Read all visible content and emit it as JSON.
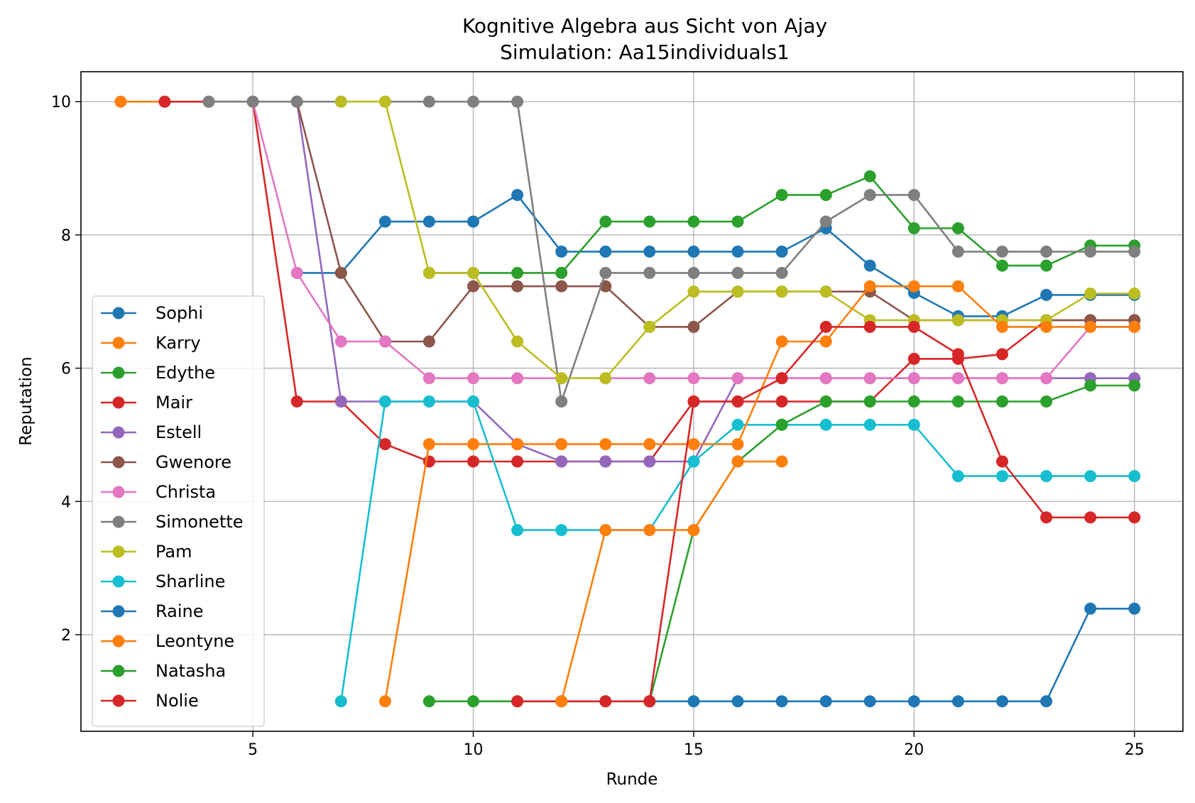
{
  "chart_data": {
    "type": "line",
    "title": "Kognitive Algebra aus Sicht von Ajay",
    "subtitle": "Simulation: Aa15individuals1",
    "xlabel": "Runde",
    "ylabel": "Reputation",
    "xlim": [
      1.1,
      26.1
    ],
    "ylim": [
      0.55,
      10.45
    ],
    "xticks": [
      5,
      10,
      15,
      20,
      25
    ],
    "yticks": [
      2,
      4,
      6,
      8,
      10
    ],
    "grid": true,
    "legend_position": "lower-left",
    "series": [
      {
        "name": "Sophi",
        "color": "#1f77b4",
        "x": [
          6,
          7,
          8,
          9,
          10,
          11,
          12,
          13,
          14,
          15,
          16,
          17,
          18,
          19,
          20,
          21,
          22,
          23,
          24,
          25
        ],
        "y": [
          7.43,
          7.43,
          8.2,
          8.2,
          8.2,
          8.6,
          7.75,
          7.75,
          7.75,
          7.75,
          7.75,
          7.75,
          8.1,
          7.54,
          7.13,
          6.78,
          6.78,
          7.1,
          7.1,
          7.1
        ]
      },
      {
        "name": "Karry",
        "color": "#ff7f0e",
        "x": [
          2,
          3
        ],
        "y": [
          10,
          10
        ]
      },
      {
        "name": "Edythe",
        "color": "#2ca02c",
        "x": [
          9,
          10,
          11,
          12,
          13,
          14,
          15,
          16,
          17,
          18,
          19,
          20,
          21,
          22,
          23,
          24,
          25
        ],
        "y": [
          7.43,
          7.43,
          7.43,
          7.43,
          8.2,
          8.2,
          8.2,
          8.2,
          8.6,
          8.6,
          8.88,
          8.1,
          8.1,
          7.54,
          7.54,
          7.84,
          7.84
        ]
      },
      {
        "name": "Mair",
        "color": "#d62728",
        "x": [
          3,
          4,
          5,
          6,
          7,
          8,
          9,
          10,
          11,
          12,
          13,
          14,
          15,
          16,
          17,
          18,
          19,
          20,
          21,
          22,
          23,
          24,
          25
        ],
        "y": [
          10,
          10,
          10,
          5.5,
          5.5,
          4.86,
          4.6,
          4.6,
          4.6,
          4.6,
          4.6,
          4.6,
          5.5,
          5.5,
          5.5,
          5.5,
          5.5,
          6.14,
          6.14,
          6.21,
          6.72,
          6.72,
          6.72
        ]
      },
      {
        "name": "Estell",
        "color": "#9467bd",
        "x": [
          6,
          7,
          8,
          9,
          10,
          11,
          12,
          13,
          14,
          15,
          16,
          17,
          18,
          19,
          20,
          21,
          22,
          23,
          24,
          25
        ],
        "y": [
          10,
          5.5,
          5.5,
          5.5,
          5.5,
          4.86,
          4.6,
          4.6,
          4.6,
          4.6,
          5.85,
          5.85,
          5.85,
          5.85,
          5.85,
          5.85,
          5.85,
          5.85,
          5.85,
          5.85
        ]
      },
      {
        "name": "Gwenore",
        "color": "#8c564b",
        "x": [
          6,
          7,
          8,
          9,
          10,
          11,
          12,
          13,
          14,
          15,
          16,
          17,
          18,
          19,
          20,
          21,
          22,
          23,
          24,
          25
        ],
        "y": [
          10,
          7.43,
          6.4,
          6.4,
          7.23,
          7.23,
          7.23,
          7.23,
          6.62,
          6.62,
          7.15,
          7.15,
          7.15,
          7.15,
          6.72,
          6.72,
          6.72,
          6.72,
          6.72,
          6.72
        ]
      },
      {
        "name": "Christa",
        "color": "#e377c2",
        "x": [
          5,
          6,
          7,
          8,
          9,
          10,
          11,
          12,
          13,
          14,
          15,
          16,
          17,
          18,
          19,
          20,
          21,
          22,
          23,
          24,
          25
        ],
        "y": [
          10,
          7.43,
          6.4,
          6.4,
          5.85,
          5.85,
          5.85,
          5.85,
          5.85,
          5.85,
          5.85,
          5.85,
          5.85,
          5.85,
          5.85,
          5.85,
          5.85,
          5.85,
          5.85,
          6.62,
          6.62
        ]
      },
      {
        "name": "Simonette",
        "color": "#7f7f7f",
        "x": [
          4,
          5,
          6,
          7,
          8,
          9,
          10,
          11,
          12,
          13,
          14,
          15,
          16,
          17,
          18,
          19,
          20,
          21,
          22,
          23,
          24,
          25
        ],
        "y": [
          10,
          10,
          10,
          10,
          10,
          10,
          10,
          10,
          5.5,
          7.43,
          7.43,
          7.43,
          7.43,
          7.43,
          8.2,
          8.6,
          8.6,
          7.75,
          7.75,
          7.75,
          7.75,
          7.75
        ]
      },
      {
        "name": "Pam",
        "color": "#bcbd22",
        "x": [
          7,
          8,
          9,
          10,
          11,
          12,
          13,
          14,
          15,
          16,
          17,
          18,
          19,
          20,
          21,
          22,
          23,
          24,
          25
        ],
        "y": [
          10,
          10,
          7.43,
          7.43,
          6.4,
          5.85,
          5.85,
          6.62,
          7.15,
          7.15,
          7.15,
          7.15,
          6.72,
          6.72,
          6.72,
          6.72,
          6.72,
          7.12,
          7.12
        ]
      },
      {
        "name": "Sharline",
        "color": "#17becf",
        "x": [
          7,
          8,
          9,
          10,
          11,
          12,
          13,
          14,
          15,
          16,
          17,
          18,
          19,
          20,
          21,
          22,
          23,
          24,
          25
        ],
        "y": [
          1,
          5.5,
          5.5,
          5.5,
          3.57,
          3.57,
          3.57,
          3.57,
          4.6,
          5.15,
          5.15,
          5.15,
          5.15,
          5.15,
          4.38,
          4.38,
          4.38,
          4.38,
          4.38
        ]
      },
      {
        "name": "Raine",
        "color": "#1f77b4",
        "x": [
          14,
          15,
          16,
          17,
          18,
          19,
          20,
          21,
          22,
          23,
          24,
          25
        ],
        "y": [
          1,
          1,
          1,
          1,
          1,
          1,
          1,
          1,
          1,
          1,
          2.39,
          2.39
        ]
      },
      {
        "name": "Leontyne",
        "color": "#ff7f0e",
        "x": [
          8,
          9,
          10,
          11,
          12,
          13,
          14,
          15,
          16,
          17,
          18,
          19,
          20,
          21,
          22,
          23,
          24,
          25
        ],
        "y": [
          1,
          4.86,
          4.86,
          4.86,
          4.86,
          4.86,
          4.86,
          4.86,
          4.86,
          6.4,
          6.4,
          7.23,
          7.23,
          7.23,
          6.62,
          6.62,
          6.62,
          6.62
        ]
      },
      {
        "name": "Natasha",
        "color": "#2ca02c",
        "x": [
          9,
          10,
          11,
          12,
          13,
          14,
          15,
          16,
          17,
          18,
          19,
          20,
          21,
          22,
          23,
          24,
          25
        ],
        "y": [
          1,
          1,
          1,
          1,
          1,
          1,
          3.57,
          4.6,
          5.15,
          5.5,
          5.5,
          5.5,
          5.5,
          5.5,
          5.5,
          5.74,
          5.74
        ]
      },
      {
        "name": "Nolie",
        "color": "#d62728",
        "x": [
          11,
          12,
          13,
          14,
          15,
          16,
          17,
          18,
          19,
          20,
          21,
          22,
          23,
          24,
          25
        ],
        "y": [
          1,
          1,
          1,
          1,
          5.5,
          5.5,
          5.85,
          6.62,
          6.62,
          6.62,
          6.21,
          4.6,
          3.76,
          3.76,
          3.76
        ]
      },
      {
        "name": "",
        "color": "#ff7f0e",
        "x": [
          12,
          13,
          14,
          15,
          16,
          17
        ],
        "y": [
          1,
          3.57,
          3.57,
          3.57,
          4.6,
          4.6
        ]
      }
    ]
  }
}
